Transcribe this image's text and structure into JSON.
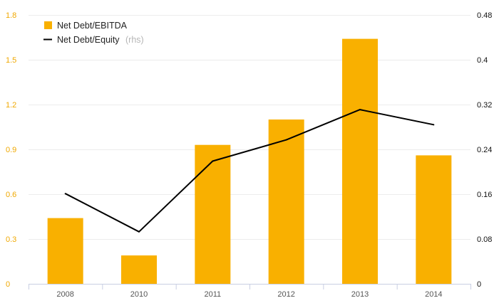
{
  "chart_data": {
    "type": "bar",
    "categories": [
      "2008",
      "2010",
      "2011",
      "2012",
      "2013",
      "2014"
    ],
    "series": [
      {
        "name": "Net Debt/EBITDA",
        "type": "bar",
        "axis": "left",
        "color": "#f9b000",
        "values": [
          0.44,
          0.19,
          0.93,
          1.1,
          1.64,
          0.86
        ]
      },
      {
        "name": "Net Debt/Equity",
        "name_suffix": "(rhs)",
        "type": "line",
        "axis": "right",
        "color": "#000000",
        "values": [
          0.161,
          0.093,
          0.219,
          0.257,
          0.311,
          0.284
        ]
      }
    ],
    "ylim_left": [
      0,
      1.8
    ],
    "ylim_right": [
      0,
      0.48
    ],
    "yticks_left": [
      "0",
      "0.3",
      "0.6",
      "0.9",
      "1.2",
      "1.5",
      "1.8"
    ],
    "yticks_right": [
      "0",
      "0.08",
      "0.16",
      "0.24",
      "0.32",
      "0.4",
      "0.48"
    ],
    "grid": true,
    "legend_position": "top-left"
  }
}
